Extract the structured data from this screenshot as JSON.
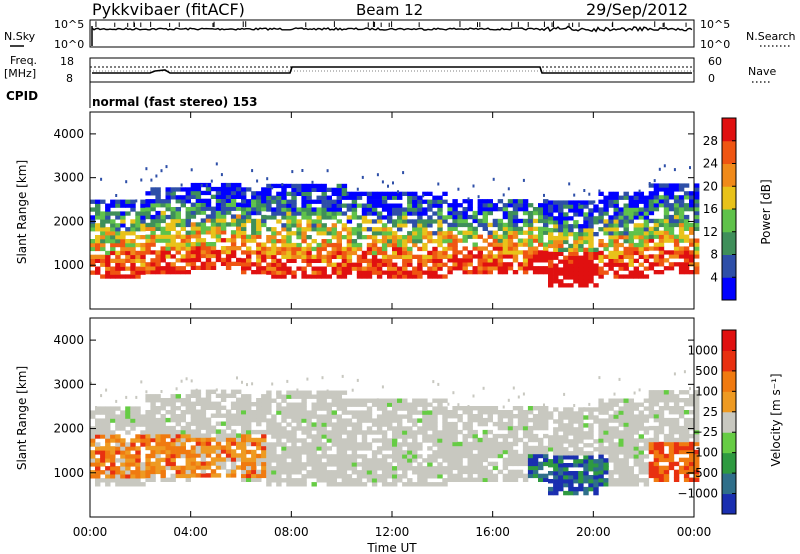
{
  "header": {
    "station": "Pykkvibaer (fitACF)",
    "beam": "Beam 12",
    "date": "29/Sep/2012"
  },
  "top_panels": {
    "nsky_label": "N.Sky",
    "nsearch_label": "N.Search",
    "nsky_ticks": [
      "10^5",
      "10^0"
    ],
    "nsearch_ticks": [
      "10^5",
      "10^0"
    ],
    "freq_label_1": "Freq.",
    "freq_label_2": "[MHz]",
    "freq_ticks": [
      "18",
      "8"
    ],
    "nave_label": "Nave",
    "nave_ticks": [
      "60",
      "0"
    ],
    "cpid_label": "CPID",
    "cpid_text": "normal (fast stereo) 153"
  },
  "chart_data": [
    {
      "type": "heatmap",
      "panel": "power",
      "ylabel": "Slant Range [km]",
      "xlabel": "",
      "ylim": [
        0,
        4500
      ],
      "yticks": [
        "1000",
        "2000",
        "3000",
        "4000"
      ],
      "colorbar_label": "Power [dB]",
      "colorbar_ticks": [
        "4",
        "8",
        "12",
        "16",
        "20",
        "24",
        "28"
      ],
      "colors": [
        "#0000ff",
        "#2e4fa8",
        "#3f8f5a",
        "#5fc24a",
        "#e8c21a",
        "#f08a1a",
        "#ef5512",
        "#e01010"
      ]
    },
    {
      "type": "heatmap",
      "panel": "velocity",
      "ylabel": "Slant Range [km]",
      "xlabel": "Time UT",
      "ylim": [
        0,
        4500
      ],
      "yticks": [
        "1000",
        "2000",
        "3000",
        "4000"
      ],
      "xticks": [
        "00:00",
        "04:00",
        "08:00",
        "12:00",
        "16:00",
        "20:00",
        "00:00"
      ],
      "colorbar_label": "Velocity [m s⁻¹]",
      "colorbar_ticks": [
        "1000",
        "500",
        "100",
        "25",
        "−25",
        "−100",
        "−500",
        "−1000"
      ],
      "colors": [
        "#1a2fb0",
        "#2f6f8a",
        "#2e9a40",
        "#66cc44",
        "#c8c8c0",
        "#ee9a22",
        "#f07a10",
        "#e83010",
        "#e01010"
      ]
    }
  ]
}
